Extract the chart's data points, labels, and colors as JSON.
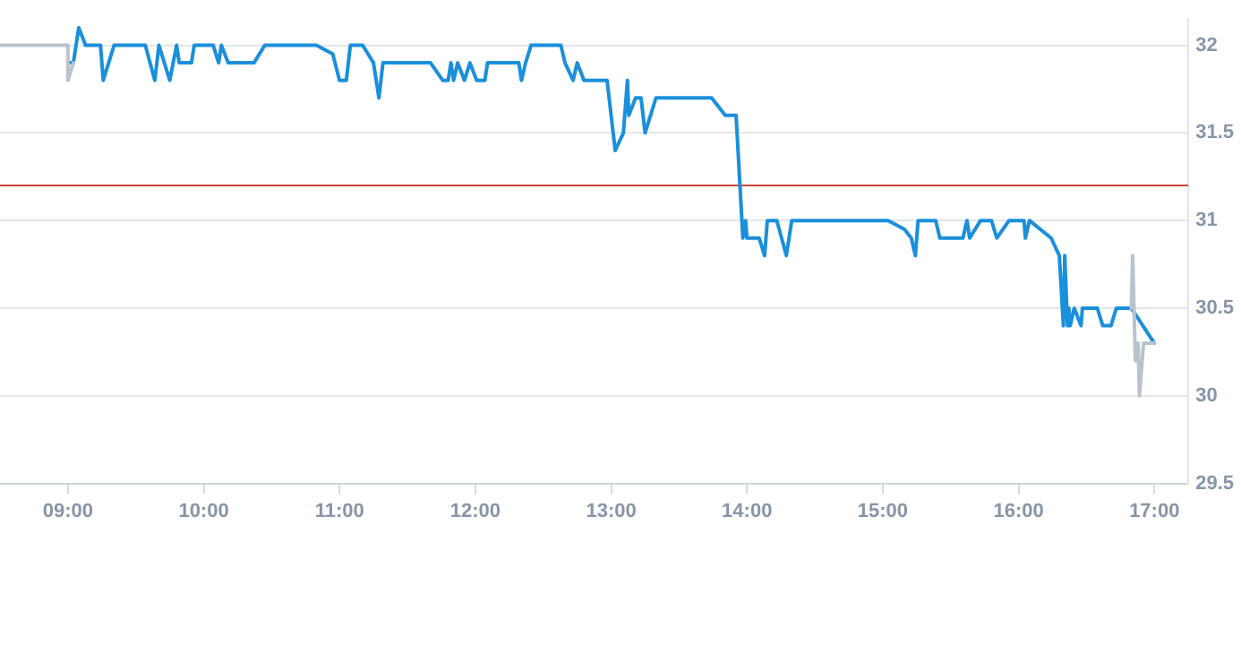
{
  "chart_data": {
    "type": "line",
    "xlim": [
      8.5,
      17.25
    ],
    "ylim": [
      29.5,
      32.15
    ],
    "xticks": [
      {
        "value": 9,
        "label": "09:00"
      },
      {
        "value": 10,
        "label": "10:00"
      },
      {
        "value": 11,
        "label": "11:00"
      },
      {
        "value": 12,
        "label": "12:00"
      },
      {
        "value": 13,
        "label": "13:00"
      },
      {
        "value": 14,
        "label": "14:00"
      },
      {
        "value": 15,
        "label": "15:00"
      },
      {
        "value": 16,
        "label": "16:00"
      },
      {
        "value": 17,
        "label": "17:00"
      }
    ],
    "yticks": [
      29.5,
      30,
      30.5,
      31,
      31.5,
      32
    ],
    "grid": "y",
    "legend": false,
    "marker": "none",
    "line_style": "solid",
    "ref_lines": [
      {
        "axis": "y",
        "value": 31.2,
        "color": "#d0463c"
      }
    ],
    "series": [
      {
        "color": "#b8c3cd",
        "x": [
          8.5,
          9.0,
          9.0,
          9.04
        ],
        "values": [
          32,
          32,
          31.8,
          31.9
        ]
      },
      {
        "color": "#b8c3cd",
        "x": [
          16.83,
          16.84,
          16.86,
          16.88,
          16.89,
          16.92,
          17.0
        ],
        "values": [
          30.5,
          30.8,
          30.2,
          30.3,
          30.0,
          30.3,
          30.3
        ]
      },
      {
        "color": "#1a8fdb",
        "x": [
          9.0,
          9.04,
          9.08,
          9.13,
          9.24,
          9.26,
          9.34,
          9.57,
          9.64,
          9.67,
          9.71,
          9.75,
          9.8,
          9.82,
          9.91,
          9.93,
          10.07,
          10.11,
          10.13,
          10.18,
          10.37,
          10.45,
          10.83,
          10.95,
          11.0,
          11.05,
          11.08,
          11.17,
          11.25,
          11.29,
          11.32,
          11.67,
          11.76,
          11.8,
          11.82,
          11.84,
          11.87,
          11.92,
          11.96,
          12.01,
          12.07,
          12.09,
          12.32,
          12.34,
          12.37,
          12.41,
          12.63,
          12.66,
          12.72,
          12.75,
          12.8,
          12.97,
          13.03,
          13.09,
          13.12,
          13.13,
          13.18,
          13.22,
          13.25,
          13.33,
          13.74,
          13.84,
          13.92,
          13.97,
          13.99,
          14.0,
          14.09,
          14.13,
          14.15,
          14.22,
          14.29,
          14.33,
          15.04,
          15.16,
          15.21,
          15.24,
          15.26,
          15.39,
          15.42,
          15.59,
          15.62,
          15.64,
          15.72,
          15.8,
          15.84,
          15.93,
          16.04,
          16.05,
          16.08,
          16.24,
          16.3,
          16.33,
          16.34,
          16.36,
          16.37,
          16.38,
          16.41,
          16.46,
          16.47,
          16.58,
          16.62,
          16.68,
          16.72,
          16.83,
          17.0
        ],
        "values": [
          31.9,
          31.9,
          32.1,
          32.0,
          32.0,
          31.8,
          32.0,
          32.0,
          31.8,
          32.0,
          31.9,
          31.8,
          32.0,
          31.9,
          31.9,
          32.0,
          32.0,
          31.9,
          32.0,
          31.9,
          31.9,
          32.0,
          32.0,
          31.95,
          31.8,
          31.8,
          32.0,
          32.0,
          31.9,
          31.7,
          31.9,
          31.9,
          31.8,
          31.8,
          31.9,
          31.8,
          31.9,
          31.8,
          31.9,
          31.8,
          31.8,
          31.9,
          31.9,
          31.8,
          31.9,
          32.0,
          32.0,
          31.9,
          31.8,
          31.9,
          31.8,
          31.8,
          31.4,
          31.5,
          31.8,
          31.6,
          31.7,
          31.7,
          31.5,
          31.7,
          31.7,
          31.6,
          31.6,
          30.9,
          31.0,
          30.9,
          30.9,
          30.8,
          31.0,
          31.0,
          30.8,
          31.0,
          31.0,
          30.95,
          30.9,
          30.8,
          31.0,
          31.0,
          30.9,
          30.9,
          31.0,
          30.9,
          31.0,
          31.0,
          30.9,
          31.0,
          31.0,
          30.9,
          31.0,
          30.9,
          30.8,
          30.4,
          30.8,
          30.4,
          30.5,
          30.4,
          30.5,
          30.4,
          30.5,
          30.5,
          30.4,
          30.4,
          30.5,
          30.5,
          30.3
        ]
      }
    ]
  }
}
